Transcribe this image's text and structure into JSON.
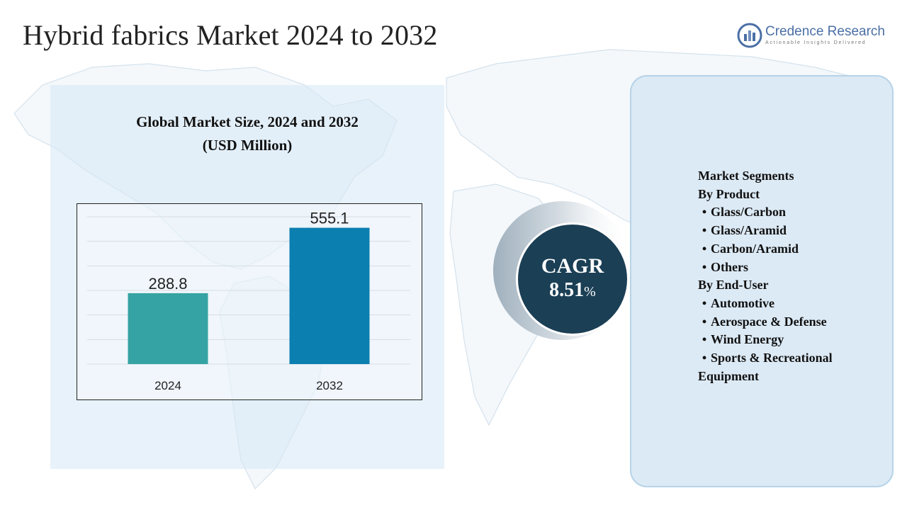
{
  "header": {
    "title": "Hybrid fabrics Market 2024 to 2032"
  },
  "logo": {
    "name": "Credence Research",
    "tagline": "Actionable Insights Delivered",
    "color": "#4a6fa5"
  },
  "chart_panel": {
    "title_line1": "Global Market Size, 2024 and 2032",
    "title_line2": "(USD Million)"
  },
  "chart_data": {
    "type": "bar",
    "categories": [
      "2024",
      "2032"
    ],
    "values": [
      288.8,
      555.1
    ],
    "value_labels": [
      "288.8",
      "555.1"
    ],
    "colors": [
      "#35a3a3",
      "#0a7fb0"
    ],
    "title": "Global Market Size, 2024 and 2032 (USD Million)",
    "xlabel": "",
    "ylabel": "",
    "ylim": [
      0,
      600
    ],
    "grid": true,
    "legend": "none"
  },
  "cagr": {
    "label": "CAGR",
    "value": "8.51",
    "unit": "%",
    "colors": {
      "circle": "#1b3f55",
      "ring": "#c9d3dc"
    }
  },
  "segments": {
    "heading": "Market Segments",
    "groups": [
      {
        "title": "By Product",
        "items": [
          "Glass/Carbon",
          "Glass/Aramid",
          "Carbon/Aramid",
          "Others"
        ]
      },
      {
        "title": "By End-User",
        "items": [
          "Automotive",
          "Aerospace & Defense",
          "Wind Energy",
          "Sports & Recreational"
        ]
      }
    ],
    "trailing_line": "Equipment",
    "bullet": "•"
  }
}
